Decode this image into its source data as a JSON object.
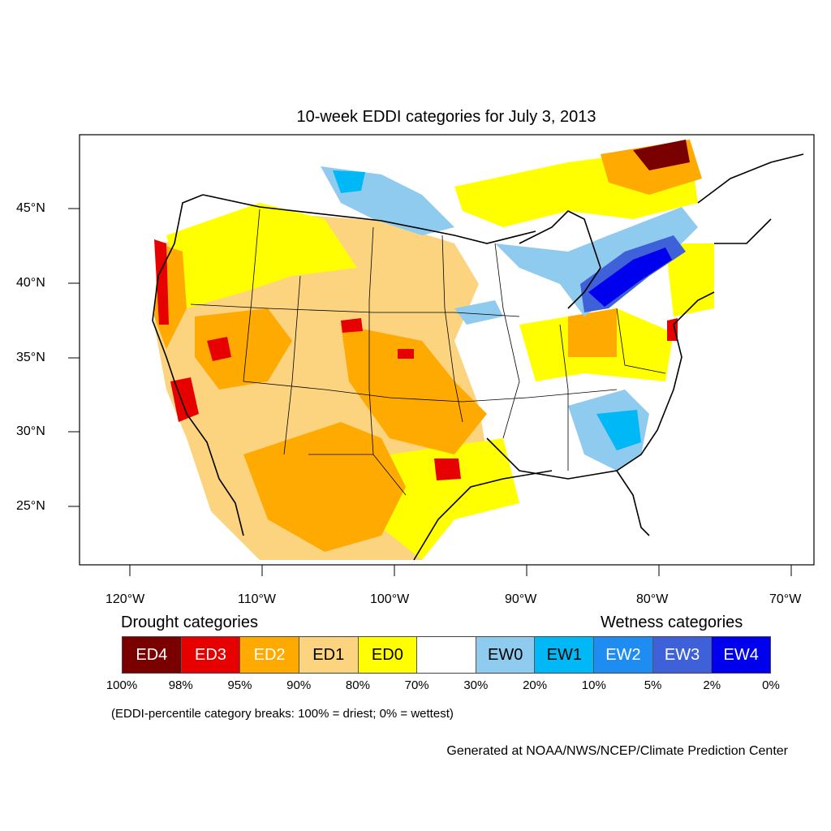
{
  "title": "10-week EDDI categories for July 3, 2013",
  "lat_labels": [
    "45°N",
    "40°N",
    "35°N",
    "30°N",
    "25°N"
  ],
  "lon_labels": [
    "120°W",
    "110°W",
    "100°W",
    "90°W",
    "80°W",
    "70°W"
  ],
  "legend": {
    "drought_heading": "Drought categories",
    "wetness_heading": "Wetness categories",
    "categories": [
      {
        "label": "ED4",
        "color": "#7a0000",
        "text_color": "#ffffff"
      },
      {
        "label": "ED3",
        "color": "#e60000",
        "text_color": "#ffffff"
      },
      {
        "label": "ED2",
        "color": "#ffaa00",
        "text_color": "#ffffff"
      },
      {
        "label": "ED1",
        "color": "#fcd37f",
        "text_color": "#000000"
      },
      {
        "label": "ED0",
        "color": "#ffff00",
        "text_color": "#000000"
      },
      {
        "label": "",
        "color": "#ffffff",
        "text_color": "#000000"
      },
      {
        "label": "EW0",
        "color": "#8fcbef",
        "text_color": "#000000"
      },
      {
        "label": "EW1",
        "color": "#00b8f5",
        "text_color": "#000000"
      },
      {
        "label": "EW2",
        "color": "#1e8cf0",
        "text_color": "#ffffff"
      },
      {
        "label": "EW3",
        "color": "#3e60d8",
        "text_color": "#ffffff"
      },
      {
        "label": "EW4",
        "color": "#0000ee",
        "text_color": "#ffffff"
      }
    ],
    "breaks": [
      "100%",
      "98%",
      "95%",
      "90%",
      "80%",
      "70%",
      "30%",
      "20%",
      "10%",
      "5%",
      "2%",
      "0%"
    ]
  },
  "note": "(EDDI-percentile category breaks: 100% = driest; 0% = wettest)",
  "credit": "Generated at NOAA/NWS/NCEP/Climate Prediction Center"
}
